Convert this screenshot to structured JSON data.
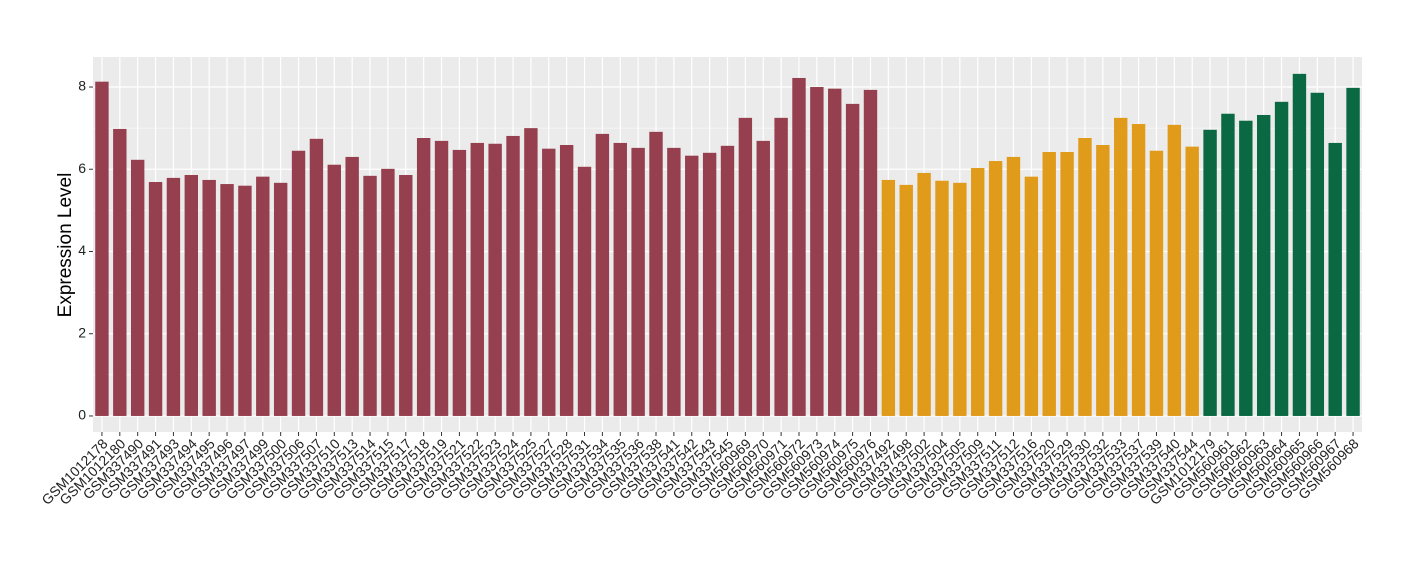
{
  "chart_data": {
    "type": "bar",
    "y_label": "Expression Level",
    "categories": [
      "GSM1012178",
      "GSM1012180",
      "GSM337490",
      "GSM337491",
      "GSM337493",
      "GSM337494",
      "GSM337495",
      "GSM337496",
      "GSM337497",
      "GSM337499",
      "GSM337500",
      "GSM337506",
      "GSM337507",
      "GSM337510",
      "GSM337513",
      "GSM337514",
      "GSM337515",
      "GSM337517",
      "GSM337518",
      "GSM337519",
      "GSM337521",
      "GSM337522",
      "GSM337523",
      "GSM337524",
      "GSM337525",
      "GSM337527",
      "GSM337528",
      "GSM337531",
      "GSM337534",
      "GSM337535",
      "GSM337536",
      "GSM337538",
      "GSM337541",
      "GSM337542",
      "GSM337543",
      "GSM337545",
      "GSM560969",
      "GSM560970",
      "GSM560971",
      "GSM560972",
      "GSM560973",
      "GSM560974",
      "GSM560975",
      "GSM560976",
      "GSM337492",
      "GSM337498",
      "GSM337502",
      "GSM337504",
      "GSM337505",
      "GSM337509",
      "GSM337511",
      "GSM337512",
      "GSM337516",
      "GSM337520",
      "GSM337529",
      "GSM337530",
      "GSM337532",
      "GSM337533",
      "GSM337537",
      "GSM337539",
      "GSM337540",
      "GSM337544",
      "GSM1012179",
      "GSM560961",
      "GSM560962",
      "GSM560963",
      "GSM560964",
      "GSM560965",
      "GSM560966",
      "GSM560967",
      "GSM560968"
    ],
    "values": [
      8.13,
      6.98,
      6.23,
      5.69,
      5.79,
      5.86,
      5.74,
      5.64,
      5.6,
      5.82,
      5.67,
      6.45,
      6.74,
      6.11,
      6.3,
      5.84,
      6.01,
      5.86,
      6.76,
      6.69,
      6.47,
      6.64,
      6.62,
      6.81,
      7.0,
      6.5,
      6.59,
      6.06,
      6.86,
      6.64,
      6.52,
      6.91,
      6.52,
      6.33,
      6.4,
      6.57,
      7.25,
      6.69,
      7.25,
      8.22,
      8.0,
      7.96,
      7.59,
      7.93,
      5.74,
      5.62,
      5.91,
      5.72,
      5.67,
      6.03,
      6.2,
      6.3,
      5.82,
      6.42,
      6.42,
      6.76,
      6.59,
      7.25,
      7.1,
      6.45,
      7.08,
      6.55,
      6.96,
      7.35,
      7.18,
      7.32,
      7.64,
      8.32,
      7.86,
      6.64,
      7.98
    ],
    "colors": [
      "#953F4F",
      "#953F4F",
      "#953F4F",
      "#953F4F",
      "#953F4F",
      "#953F4F",
      "#953F4F",
      "#953F4F",
      "#953F4F",
      "#953F4F",
      "#953F4F",
      "#953F4F",
      "#953F4F",
      "#953F4F",
      "#953F4F",
      "#953F4F",
      "#953F4F",
      "#953F4F",
      "#953F4F",
      "#953F4F",
      "#953F4F",
      "#953F4F",
      "#953F4F",
      "#953F4F",
      "#953F4F",
      "#953F4F",
      "#953F4F",
      "#953F4F",
      "#953F4F",
      "#953F4F",
      "#953F4F",
      "#953F4F",
      "#953F4F",
      "#953F4F",
      "#953F4F",
      "#953F4F",
      "#953F4F",
      "#953F4F",
      "#953F4F",
      "#953F4F",
      "#953F4F",
      "#953F4F",
      "#953F4F",
      "#953F4F",
      "#E09B1A",
      "#E09B1A",
      "#E09B1A",
      "#E09B1A",
      "#E09B1A",
      "#E09B1A",
      "#E09B1A",
      "#E09B1A",
      "#E09B1A",
      "#E09B1A",
      "#E09B1A",
      "#E09B1A",
      "#E09B1A",
      "#E09B1A",
      "#E09B1A",
      "#E09B1A",
      "#E09B1A",
      "#E09B1A",
      "#0A6942",
      "#0A6942",
      "#0A6942",
      "#0A6942",
      "#0A6942",
      "#0A6942",
      "#0A6942",
      "#0A6942",
      "#0A6942"
    ],
    "ylim": [
      -0.39,
      8.73
    ],
    "yticks": [
      0,
      2,
      4,
      6,
      8
    ],
    "minor_yticks": [
      1,
      3,
      5,
      7
    ],
    "grid": true
  }
}
